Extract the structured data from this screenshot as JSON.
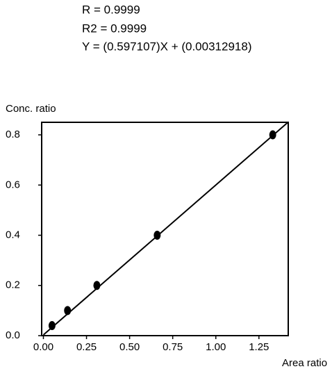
{
  "chart_data": {
    "type": "scatter",
    "annotations": [
      "R = 0.9999",
      "R2 = 0.9999",
      "Y = (0.597107)X + (0.00312918)"
    ],
    "y_label": "Conc. ratio",
    "x_label": "Area ratio",
    "x": [
      0.05,
      0.14,
      0.31,
      0.66,
      1.33
    ],
    "values": [
      0.04,
      0.1,
      0.2,
      0.4,
      0.8
    ],
    "color": "#000000",
    "fit_line": {
      "x": [
        0,
        1.42
      ],
      "values": [
        0.003,
        0.851
      ]
    },
    "xlim": [
      -0.01,
      1.42
    ],
    "xticks": [
      {
        "value": 0,
        "label": "0.00"
      },
      0.25,
      {
        "value": 0.5,
        "label": "0.50"
      },
      0.75,
      {
        "value": 1,
        "label": "1.00"
      },
      1.25
    ],
    "ylim": [
      0,
      0.85
    ],
    "yticks": [
      {
        "value": 0,
        "label": "0.0"
      },
      0.2,
      0.4,
      0.6,
      0.8
    ]
  }
}
